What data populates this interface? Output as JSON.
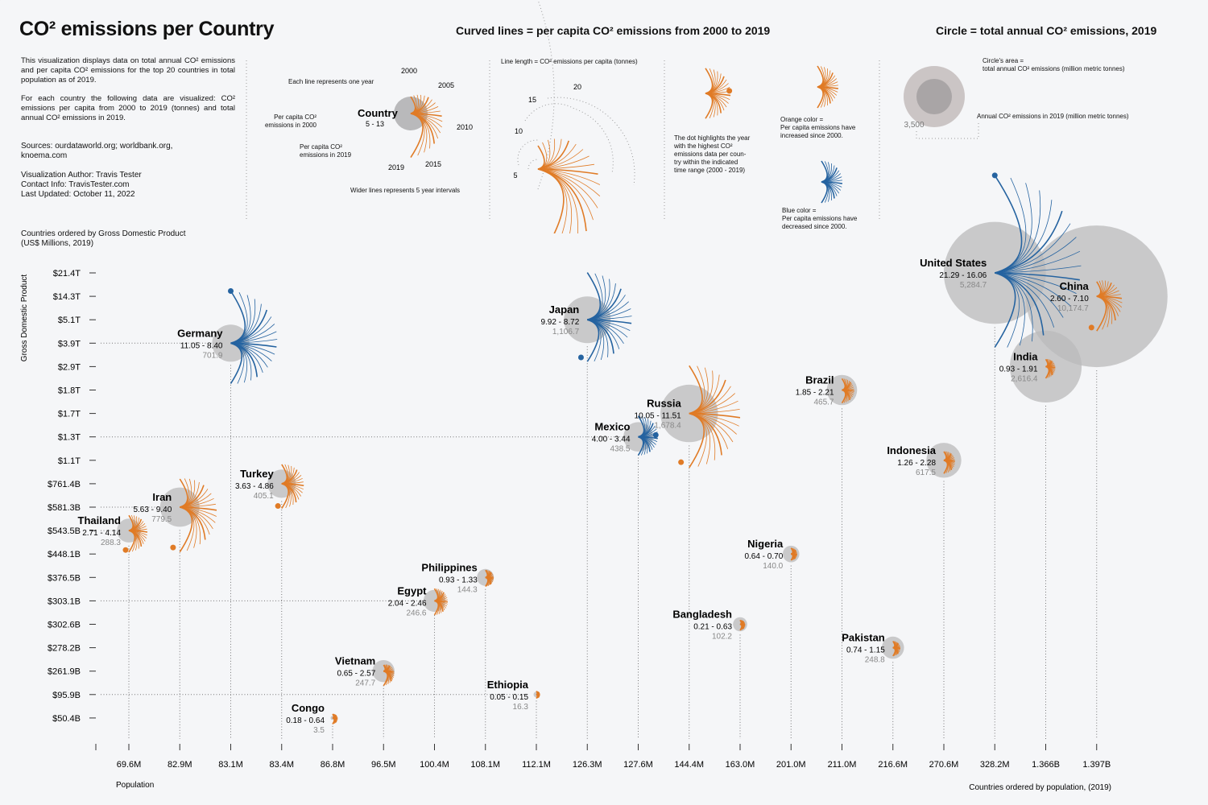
{
  "title": "CO² emissions per Country",
  "header_curves": "Curved lines = per capita CO² emissions from 2000 to 2019",
  "header_circle": "Circle = total annual CO² emissions, 2019",
  "intro_1": "This visualization displays data on total annual CO² emissions and per capita CO² emissions for the top 20 countries in total population as of 2019.",
  "intro_2": "For each country the following data are visualized: CO² emissions per capita from 2000 to 2019 (tonnes) and total annual CO² emissions in 2019.",
  "sources": "Sources: ourdataworld.org; worldbank.org, knoema.com",
  "author": "Visualization Author: Travis Tester",
  "contact": "Contact Info: TravisTester.com",
  "updated": "Last Updated: October 11, 2022",
  "gdp_note_1": "Countries ordered by Gross Domestic Product",
  "gdp_note_2": "(US$ Millions, 2019)",
  "legend": {
    "each_line": "Each line represents one year",
    "y2000": "2000",
    "y2005": "2005",
    "y2010": "2010",
    "y2015": "2015",
    "y2019": "2019",
    "country": "Country",
    "country_range": "5 - 13",
    "pc2000_1": "Per capita CO²",
    "pc2000_2": "emissions in 2000",
    "pc2019_1": "Per capita CO²",
    "pc2019_2": "emissions in 2019",
    "wider": "Wider lines represents 5 year intervals",
    "line_length": "Line length = CO² emissions per capita (tonnes)",
    "scale_5": "5",
    "scale_10": "10",
    "scale_15": "15",
    "scale_20": "20",
    "dot_1": "The dot highlights the year",
    "dot_2": "with the highest CO²",
    "dot_3": "emissions data per coun-",
    "dot_4": "try within the indicated",
    "dot_5": "time range (2000 - 2019)",
    "orange_1": "Orange color =",
    "orange_2": "Per capita emissions have",
    "orange_3": "increased since 2000.",
    "blue_1": "Blue color =",
    "blue_2": "Per capita emissions have",
    "blue_3": "decreased since 2000.",
    "area_1": "Circle's area =",
    "area_2": "total annual CO² emissions (million metric tonnes)",
    "annual_2019": "Annual CO² emissions in 2019 (million metric tonnes)",
    "circle_value": "3,500"
  },
  "colors": {
    "increase": "#e07b26",
    "decrease": "#2563a0",
    "circle": "#b9b9bb",
    "background": "#f5f6f8"
  },
  "chart_data": {
    "type": "scatter",
    "title": "CO² emissions per Country",
    "xlabel": "Population",
    "x_caption": "Countries ordered by population, (2019)",
    "ylabel": "Gross Domestic Product",
    "x_ticks": [
      "69.6M",
      "82.9M",
      "83.1M",
      "83.4M",
      "86.8M",
      "96.5M",
      "100.4M",
      "108.1M",
      "112.1M",
      "126.3M",
      "127.6M",
      "144.4M",
      "163.0M",
      "201.0M",
      "211.0M",
      "216.6M",
      "270.6M",
      "328.2M",
      "1.366B",
      "1.397B"
    ],
    "y_ticks": [
      "$21.4T",
      "$14.3T",
      "$5.1T",
      "$3.9T",
      "$2.9T",
      "$1.8T",
      "$1.7T",
      "$1.3T",
      "$1.1T",
      "$761.4B",
      "$581.3B",
      "$543.5B",
      "$448.1B",
      "$376.5B",
      "$303.1B",
      "$302.6B",
      "$278.2B",
      "$261.9B",
      "$95.9B",
      "$50.4B"
    ],
    "countries": [
      {
        "name": "United States",
        "xi": 17,
        "yi": 0,
        "pc2000": 21.29,
        "pc2019": 16.06,
        "range": "21.29 - 16.06",
        "total": "5,284.7",
        "total_val": 5284.7,
        "trend": "decrease",
        "peak_dir": "up"
      },
      {
        "name": "China",
        "xi": 19,
        "yi": 1,
        "pc2000": 2.6,
        "pc2019": 7.1,
        "range": "2.60 - 7.10",
        "total": "10,174.7",
        "total_val": 10174.7,
        "trend": "increase",
        "peak_dir": "down"
      },
      {
        "name": "Japan",
        "xi": 9,
        "yi": 2,
        "pc2000": 9.92,
        "pc2019": 8.72,
        "range": "9.92 - 8.72",
        "total": "1,106.7",
        "total_val": 1106.7,
        "trend": "decrease",
        "peak_dir": "down"
      },
      {
        "name": "Germany",
        "xi": 2,
        "yi": 3,
        "pc2000": 11.05,
        "pc2019": 8.4,
        "range": "11.05 - 8.40",
        "total": "701.9",
        "total_val": 701.9,
        "trend": "decrease",
        "peak_dir": "up"
      },
      {
        "name": "India",
        "xi": 18,
        "yi": 4,
        "pc2000": 0.93,
        "pc2019": 1.91,
        "range": "0.93 - 1.91",
        "total": "2,616.4",
        "total_val": 2616.4,
        "trend": "increase",
        "peak_dir": "none"
      },
      {
        "name": "Brazil",
        "xi": 14,
        "yi": 5,
        "pc2000": 1.85,
        "pc2019": 2.21,
        "range": "1.85 - 2.21",
        "total": "465.7",
        "total_val": 465.7,
        "trend": "increase",
        "peak_dir": "none"
      },
      {
        "name": "Russia",
        "xi": 11,
        "yi": 6,
        "pc2000": 10.05,
        "pc2019": 11.51,
        "range": "10.05 - 11.51",
        "total": "1,678.4",
        "total_val": 1678.4,
        "trend": "increase",
        "peak_dir": "down"
      },
      {
        "name": "Mexico",
        "xi": 10,
        "yi": 7,
        "pc2000": 4.0,
        "pc2019": 3.44,
        "range": "4.00 - 3.44",
        "total": "438.5",
        "total_val": 438.5,
        "trend": "decrease",
        "peak_dir": "right"
      },
      {
        "name": "Indonesia",
        "xi": 16,
        "yi": 8,
        "pc2000": 1.26,
        "pc2019": 2.28,
        "range": "1.26 - 2.28",
        "total": "617.5",
        "total_val": 617.5,
        "trend": "increase",
        "peak_dir": "none"
      },
      {
        "name": "Turkey",
        "xi": 3,
        "yi": 9,
        "pc2000": 3.63,
        "pc2019": 4.86,
        "range": "3.63 - 4.86",
        "total": "405.1",
        "total_val": 405.1,
        "trend": "increase",
        "peak_dir": "down"
      },
      {
        "name": "Iran",
        "xi": 1,
        "yi": 10,
        "pc2000": 5.63,
        "pc2019": 9.4,
        "range": "5.63 - 9.40",
        "total": "779.5",
        "total_val": 779.5,
        "trend": "increase",
        "peak_dir": "down"
      },
      {
        "name": "Thailand",
        "xi": 0,
        "yi": 11,
        "pc2000": 2.71,
        "pc2019": 4.14,
        "range": "2.71 - 4.14",
        "total": "288.3",
        "total_val": 288.3,
        "trend": "increase",
        "peak_dir": "down"
      },
      {
        "name": "Nigeria",
        "xi": 13,
        "yi": 12,
        "pc2000": 0.64,
        "pc2019": 0.7,
        "range": "0.64 - 0.70",
        "total": "140.0",
        "total_val": 140.0,
        "trend": "increase",
        "peak_dir": "none"
      },
      {
        "name": "Philippines",
        "xi": 7,
        "yi": 13,
        "pc2000": 0.93,
        "pc2019": 1.33,
        "range": "0.93 - 1.33",
        "total": "144.3",
        "total_val": 144.3,
        "trend": "increase",
        "peak_dir": "none"
      },
      {
        "name": "Egypt",
        "xi": 6,
        "yi": 14,
        "pc2000": 2.04,
        "pc2019": 2.46,
        "range": "2.04 - 2.46",
        "total": "246.6",
        "total_val": 246.6,
        "trend": "increase",
        "peak_dir": "none"
      },
      {
        "name": "Bangladesh",
        "xi": 12,
        "yi": 15,
        "pc2000": 0.21,
        "pc2019": 0.63,
        "range": "0.21 - 0.63",
        "total": "102.2",
        "total_val": 102.2,
        "trend": "increase",
        "peak_dir": "none"
      },
      {
        "name": "Pakistan",
        "xi": 15,
        "yi": 16,
        "pc2000": 0.74,
        "pc2019": 1.15,
        "range": "0.74 - 1.15",
        "total": "248.8",
        "total_val": 248.8,
        "trend": "increase",
        "peak_dir": "none"
      },
      {
        "name": "Vietnam",
        "xi": 5,
        "yi": 17,
        "pc2000": 0.65,
        "pc2019": 2.57,
        "range": "0.65 - 2.57",
        "total": "247.7",
        "total_val": 247.7,
        "trend": "increase",
        "peak_dir": "none"
      },
      {
        "name": "Ethiopia",
        "xi": 8,
        "yi": 18,
        "pc2000": 0.05,
        "pc2019": 0.15,
        "range": "0.05 - 0.15",
        "total": "16.3",
        "total_val": 16.3,
        "trend": "increase",
        "peak_dir": "none"
      },
      {
        "name": "Congo",
        "xi": 4,
        "yi": 19,
        "pc2000": 0.18,
        "pc2019": 0.64,
        "range": "0.18 - 0.64",
        "total": "3.5",
        "total_val": 3.5,
        "trend": "increase",
        "peak_dir": "none"
      }
    ]
  }
}
